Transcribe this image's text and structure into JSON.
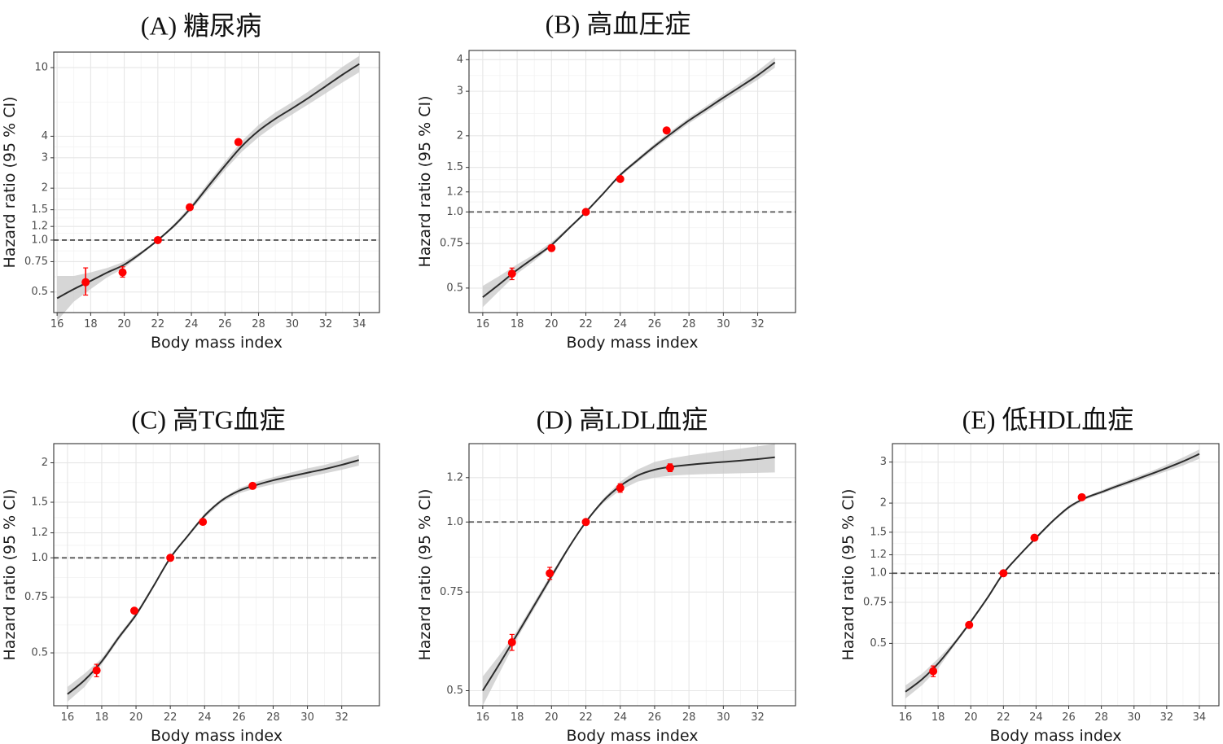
{
  "chart_data": [
    {
      "id": "A",
      "type": "line",
      "title": "(A) 糖尿病",
      "xlabel": "Body mass index",
      "ylabel": "Hazard ratio (95 % CI)",
      "y_scale": "log",
      "grid": true,
      "reference_line": 1.0,
      "xlim": [
        15.8,
        35.2
      ],
      "ylim": [
        0.38,
        12.3
      ],
      "x_ticks": [
        16,
        18,
        20,
        22,
        24,
        26,
        28,
        30,
        32,
        34
      ],
      "x_tick_labels": [
        "16",
        "18",
        "20",
        "22",
        "24",
        "26",
        "28",
        "30",
        "32",
        "34"
      ],
      "y_ticks": [
        0.5,
        0.75,
        1.0,
        1.2,
        1.5,
        2,
        3,
        4,
        10
      ],
      "y_tick_labels": [
        "0.5",
        "0.75",
        "1.0",
        "1.2",
        "1.5",
        "2",
        "3",
        "4",
        "10"
      ],
      "curve": {
        "x": [
          16,
          17,
          18,
          19,
          20,
          21,
          22,
          23,
          24,
          25,
          26,
          27,
          28,
          29,
          30,
          31,
          32,
          33,
          34
        ],
        "y": [
          0.46,
          0.52,
          0.58,
          0.65,
          0.72,
          0.84,
          1.0,
          1.22,
          1.55,
          2.05,
          2.7,
          3.5,
          4.3,
          5.05,
          5.8,
          6.7,
          7.8,
          9.1,
          10.5
        ],
        "lower": [
          0.34,
          0.44,
          0.52,
          0.61,
          0.69,
          0.82,
          1.0,
          1.19,
          1.5,
          1.95,
          2.55,
          3.25,
          3.95,
          4.65,
          5.35,
          6.15,
          7.1,
          8.2,
          9.4
        ],
        "upper": [
          0.62,
          0.62,
          0.65,
          0.69,
          0.75,
          0.86,
          1.0,
          1.25,
          1.6,
          2.15,
          2.85,
          3.75,
          4.65,
          5.5,
          6.3,
          7.3,
          8.55,
          10.1,
          11.7
        ]
      },
      "points": [
        {
          "x": 17.7,
          "y": 0.57,
          "lower": 0.48,
          "upper": 0.69
        },
        {
          "x": 19.9,
          "y": 0.65,
          "lower": 0.61,
          "upper": 0.7
        },
        {
          "x": 22.0,
          "y": 1.0,
          "lower": 1.0,
          "upper": 1.0
        },
        {
          "x": 23.9,
          "y": 1.55,
          "lower": 1.51,
          "upper": 1.6
        },
        {
          "x": 26.8,
          "y": 3.7,
          "lower": 3.6,
          "upper": 3.8
        }
      ]
    },
    {
      "id": "B",
      "type": "line",
      "title": "(B) 高血圧症",
      "xlabel": "Body mass index",
      "ylabel": "Hazard ratio (95 % CI)",
      "y_scale": "log",
      "grid": true,
      "reference_line": 1.0,
      "xlim": [
        15.2,
        34.2
      ],
      "ylim": [
        0.4,
        4.35
      ],
      "x_ticks": [
        16,
        18,
        20,
        22,
        24,
        26,
        28,
        30,
        32
      ],
      "x_tick_labels": [
        "16",
        "18",
        "20",
        "22",
        "24",
        "26",
        "28",
        "30",
        "32"
      ],
      "y_ticks": [
        0.5,
        0.75,
        1.0,
        1.2,
        1.5,
        2,
        3,
        4
      ],
      "y_tick_labels": [
        "0.5",
        "0.75",
        "1.0",
        "1.2",
        "1.5",
        "2",
        "3",
        "4"
      ],
      "curve": {
        "x": [
          16,
          17,
          18,
          19,
          20,
          21,
          22,
          23,
          24,
          25,
          26,
          27,
          28,
          29,
          30,
          31,
          32,
          33
        ],
        "y": [
          0.46,
          0.52,
          0.59,
          0.66,
          0.74,
          0.86,
          1.0,
          1.18,
          1.4,
          1.6,
          1.82,
          2.05,
          2.3,
          2.55,
          2.83,
          3.13,
          3.47,
          3.9
        ],
        "lower": [
          0.42,
          0.49,
          0.57,
          0.64,
          0.73,
          0.85,
          1.0,
          1.17,
          1.38,
          1.57,
          1.78,
          2.0,
          2.24,
          2.48,
          2.74,
          3.02,
          3.33,
          3.72
        ],
        "upper": [
          0.51,
          0.56,
          0.62,
          0.68,
          0.76,
          0.87,
          1.0,
          1.19,
          1.42,
          1.63,
          1.86,
          2.1,
          2.36,
          2.62,
          2.92,
          3.24,
          3.61,
          4.09
        ]
      },
      "points": [
        {
          "x": 17.7,
          "y": 0.57,
          "lower": 0.54,
          "upper": 0.6
        },
        {
          "x": 20.0,
          "y": 0.72,
          "lower": 0.7,
          "upper": 0.74
        },
        {
          "x": 22.0,
          "y": 1.0,
          "lower": 1.0,
          "upper": 1.0
        },
        {
          "x": 24.0,
          "y": 1.35,
          "lower": 1.32,
          "upper": 1.38
        },
        {
          "x": 26.7,
          "y": 2.1,
          "lower": 2.05,
          "upper": 2.15
        }
      ]
    },
    {
      "id": "C",
      "type": "line",
      "title": "(C) 高TG血症",
      "xlabel": "Body mass index",
      "ylabel": "Hazard ratio (95 % CI)",
      "y_scale": "log",
      "grid": true,
      "reference_line": 1.0,
      "xlim": [
        15.2,
        34.2
      ],
      "ylim": [
        0.34,
        2.3
      ],
      "x_ticks": [
        16,
        18,
        20,
        22,
        24,
        26,
        28,
        30,
        32
      ],
      "x_tick_labels": [
        "16",
        "18",
        "20",
        "22",
        "24",
        "26",
        "28",
        "30",
        "32"
      ],
      "y_ticks": [
        0.5,
        0.75,
        1.0,
        1.2,
        1.5,
        2
      ],
      "y_tick_labels": [
        "0.5",
        "0.75",
        "1.0",
        "1.2",
        "1.5",
        "2"
      ],
      "curve": {
        "x": [
          16,
          17,
          18,
          19,
          20,
          21,
          22,
          23,
          24,
          25,
          26,
          27,
          28,
          29,
          30,
          31,
          32,
          33
        ],
        "y": [
          0.37,
          0.41,
          0.47,
          0.56,
          0.66,
          0.81,
          1.0,
          1.17,
          1.36,
          1.52,
          1.63,
          1.7,
          1.76,
          1.81,
          1.86,
          1.91,
          1.97,
          2.04
        ],
        "lower": [
          0.35,
          0.39,
          0.46,
          0.55,
          0.65,
          0.8,
          1.0,
          1.16,
          1.34,
          1.5,
          1.6,
          1.66,
          1.71,
          1.76,
          1.8,
          1.85,
          1.9,
          1.96
        ],
        "upper": [
          0.39,
          0.43,
          0.48,
          0.57,
          0.67,
          0.82,
          1.0,
          1.18,
          1.38,
          1.54,
          1.66,
          1.74,
          1.8,
          1.86,
          1.92,
          1.97,
          2.04,
          2.12
        ]
      },
      "points": [
        {
          "x": 17.7,
          "y": 0.44,
          "lower": 0.42,
          "upper": 0.46
        },
        {
          "x": 19.9,
          "y": 0.68,
          "lower": 0.67,
          "upper": 0.69
        },
        {
          "x": 22.0,
          "y": 1.0,
          "lower": 1.0,
          "upper": 1.0
        },
        {
          "x": 23.9,
          "y": 1.3,
          "lower": 1.28,
          "upper": 1.32
        },
        {
          "x": 26.8,
          "y": 1.69,
          "lower": 1.66,
          "upper": 1.72
        }
      ]
    },
    {
      "id": "D",
      "type": "line",
      "title": "(D) 高LDL血症",
      "xlabel": "Body mass index",
      "ylabel": "Hazard ratio (95 % CI)",
      "y_scale": "log",
      "grid": true,
      "reference_line": 1.0,
      "xlim": [
        15.2,
        34.2
      ],
      "ylim": [
        0.47,
        1.38
      ],
      "x_ticks": [
        16,
        18,
        20,
        22,
        24,
        26,
        28,
        30,
        32
      ],
      "x_tick_labels": [
        "16",
        "18",
        "20",
        "22",
        "24",
        "26",
        "28",
        "30",
        "32"
      ],
      "y_ticks": [
        0.5,
        0.75,
        1.0,
        1.2
      ],
      "y_tick_labels": [
        "0.5",
        "0.75",
        "1.0",
        "1.2"
      ],
      "curve": {
        "x": [
          16,
          17,
          18,
          19,
          20,
          21,
          22,
          23,
          24,
          25,
          26,
          27,
          28,
          29,
          30,
          31,
          32,
          33
        ],
        "y": [
          0.5,
          0.56,
          0.63,
          0.71,
          0.8,
          0.9,
          1.0,
          1.09,
          1.16,
          1.21,
          1.24,
          1.255,
          1.265,
          1.273,
          1.28,
          1.287,
          1.295,
          1.305
        ],
        "lower": [
          0.47,
          0.54,
          0.62,
          0.7,
          0.79,
          0.895,
          1.0,
          1.08,
          1.14,
          1.18,
          1.2,
          1.21,
          1.215,
          1.218,
          1.22,
          1.222,
          1.224,
          1.226
        ],
        "upper": [
          0.53,
          0.58,
          0.64,
          0.72,
          0.81,
          0.905,
          1.0,
          1.1,
          1.18,
          1.24,
          1.28,
          1.3,
          1.315,
          1.328,
          1.34,
          1.352,
          1.365,
          1.378
        ]
      },
      "points": [
        {
          "x": 17.7,
          "y": 0.61,
          "lower": 0.59,
          "upper": 0.63
        },
        {
          "x": 19.9,
          "y": 0.81,
          "lower": 0.79,
          "upper": 0.83
        },
        {
          "x": 22.0,
          "y": 1.0,
          "lower": 1.0,
          "upper": 1.0
        },
        {
          "x": 24.0,
          "y": 1.15,
          "lower": 1.13,
          "upper": 1.17
        },
        {
          "x": 26.9,
          "y": 1.25,
          "lower": 1.23,
          "upper": 1.27
        }
      ]
    },
    {
      "id": "E",
      "type": "line",
      "title": "(E) 低HDL血症",
      "xlabel": "Body mass index",
      "ylabel": "Hazard ratio (95 % CI)",
      "y_scale": "log",
      "grid": true,
      "reference_line": 1.0,
      "xlim": [
        15.2,
        35.2
      ],
      "ylim": [
        0.27,
        3.6
      ],
      "x_ticks": [
        16,
        18,
        20,
        22,
        24,
        26,
        28,
        30,
        32,
        34
      ],
      "x_tick_labels": [
        "16",
        "18",
        "20",
        "22",
        "24",
        "26",
        "28",
        "30",
        "32",
        "34"
      ],
      "y_ticks": [
        0.5,
        0.75,
        1.0,
        1.2,
        1.5,
        2,
        3
      ],
      "y_tick_labels": [
        "0.5",
        "0.75",
        "1.0",
        "1.2",
        "1.5",
        "2",
        "3"
      ],
      "curve": {
        "x": [
          16,
          17,
          18,
          19,
          20,
          21,
          22,
          23,
          24,
          25,
          26,
          27,
          28,
          29,
          30,
          31,
          32,
          33,
          34
        ],
        "y": [
          0.31,
          0.35,
          0.41,
          0.5,
          0.62,
          0.78,
          1.0,
          1.2,
          1.42,
          1.67,
          1.92,
          2.1,
          2.23,
          2.37,
          2.51,
          2.66,
          2.83,
          3.02,
          3.25
        ],
        "lower": [
          0.29,
          0.33,
          0.39,
          0.49,
          0.61,
          0.77,
          1.0,
          1.19,
          1.4,
          1.65,
          1.89,
          2.07,
          2.19,
          2.32,
          2.45,
          2.59,
          2.74,
          2.9,
          3.1
        ],
        "upper": [
          0.33,
          0.37,
          0.43,
          0.51,
          0.63,
          0.79,
          1.0,
          1.21,
          1.44,
          1.69,
          1.95,
          2.13,
          2.27,
          2.42,
          2.57,
          2.73,
          2.92,
          3.14,
          3.4
        ]
      },
      "points": [
        {
          "x": 17.7,
          "y": 0.38,
          "lower": 0.36,
          "upper": 0.4
        },
        {
          "x": 19.9,
          "y": 0.6,
          "lower": 0.59,
          "upper": 0.61
        },
        {
          "x": 22.0,
          "y": 1.0,
          "lower": 1.0,
          "upper": 1.0
        },
        {
          "x": 23.9,
          "y": 1.42,
          "lower": 1.4,
          "upper": 1.44
        },
        {
          "x": 26.8,
          "y": 2.12,
          "lower": 2.09,
          "upper": 2.15
        }
      ]
    }
  ]
}
